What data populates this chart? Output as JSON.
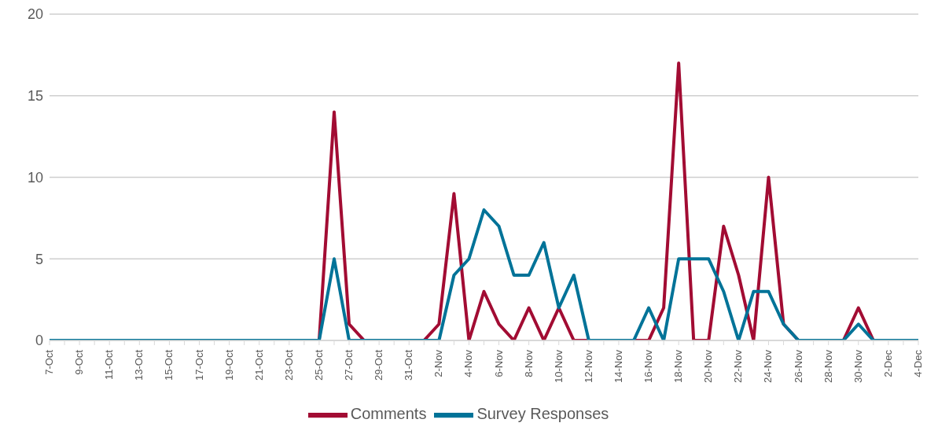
{
  "chart_data": {
    "type": "line",
    "categories": [
      "7-Oct",
      null,
      "9-Oct",
      null,
      "11-Oct",
      null,
      "13-Oct",
      null,
      "15-Oct",
      null,
      "17-Oct",
      null,
      "19-Oct",
      null,
      "21-Oct",
      null,
      "23-Oct",
      null,
      "25-Oct",
      null,
      "27-Oct",
      null,
      "29-Oct",
      null,
      "31-Oct",
      null,
      "2-Nov",
      null,
      "4-Nov",
      null,
      "6-Nov",
      null,
      "8-Nov",
      null,
      "10-Nov",
      null,
      "12-Nov",
      null,
      "14-Nov",
      null,
      "16-Nov",
      null,
      "18-Nov",
      null,
      "20-Nov",
      null,
      "22-Nov",
      null,
      "24-Nov",
      null,
      "26-Nov",
      null,
      "28-Nov",
      null,
      "30-Nov",
      null,
      "2-Dec",
      null,
      "4-Dec"
    ],
    "series": [
      {
        "name": "Comments",
        "color": "#a20c33",
        "values": [
          null,
          null,
          null,
          null,
          null,
          null,
          null,
          null,
          null,
          null,
          null,
          null,
          null,
          null,
          null,
          null,
          null,
          0,
          0,
          14,
          1,
          0,
          0,
          0,
          0,
          0,
          1,
          9,
          0,
          3,
          1,
          0,
          2,
          0,
          2,
          0,
          0,
          0,
          0,
          0,
          0,
          2,
          17,
          0,
          0,
          7,
          4,
          0,
          10,
          1,
          0,
          0,
          0,
          0,
          2,
          0,
          0,
          null,
          null
        ]
      },
      {
        "name": "Survey Responses",
        "color": "#007398",
        "values": [
          0,
          0,
          0,
          0,
          0,
          0,
          0,
          0,
          0,
          0,
          0,
          0,
          0,
          0,
          0,
          0,
          0,
          0,
          0,
          5,
          0,
          0,
          0,
          0,
          0,
          0,
          0,
          4,
          5,
          8,
          7,
          4,
          4,
          6,
          2,
          4,
          0,
          0,
          0,
          0,
          2,
          0,
          5,
          5,
          5,
          3,
          0,
          3,
          3,
          1,
          0,
          0,
          0,
          0,
          1,
          0,
          0,
          0,
          0
        ]
      }
    ],
    "ylim": [
      0,
      20
    ],
    "yticks": [
      0,
      5,
      10,
      15,
      20
    ],
    "grid": "y",
    "legend": "bottom",
    "marker": "none",
    "line_style": "solid"
  }
}
